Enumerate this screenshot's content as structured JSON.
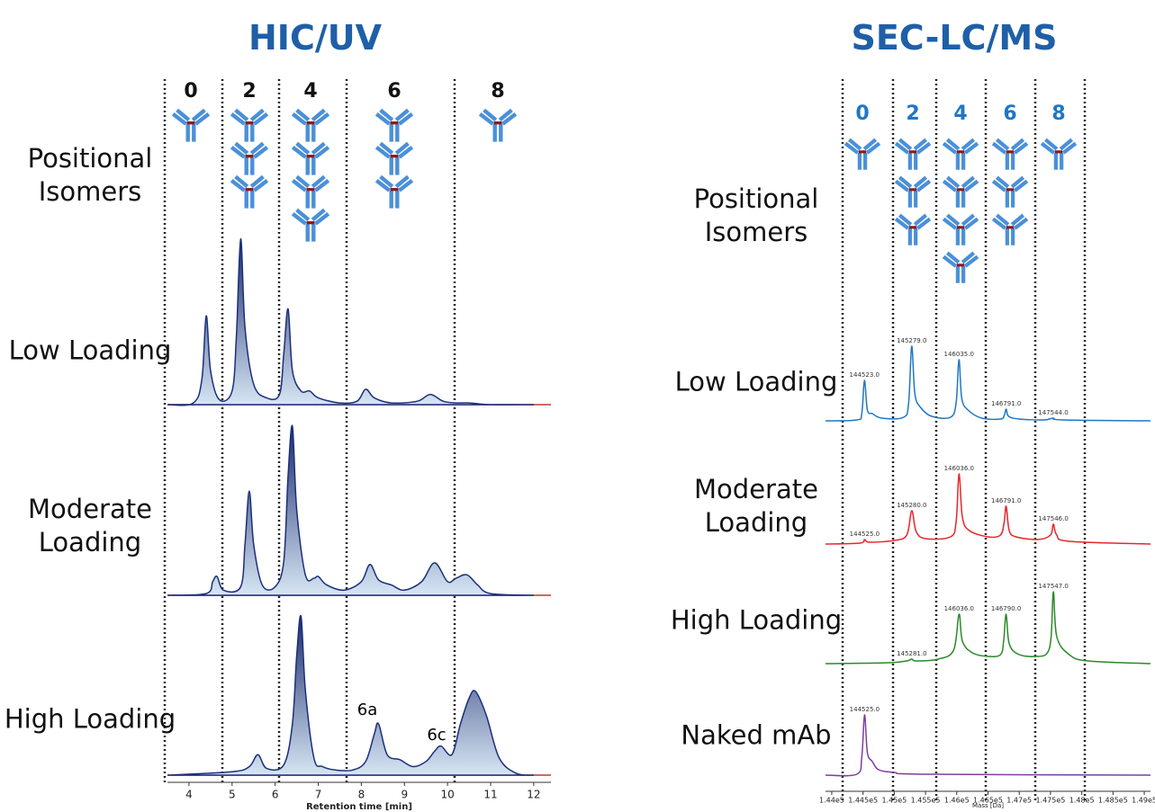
{
  "chart_data": [
    {
      "type": "area",
      "title": "HIC/UV",
      "columns": [
        0,
        2,
        4,
        6,
        8
      ],
      "row_label": "Positional Isomers",
      "xlabel": "Retention time [min]",
      "xlim": [
        3.5,
        12.4
      ],
      "xticks": [
        4,
        5,
        6,
        7,
        8,
        9,
        10,
        11,
        12
      ],
      "ylim": [
        0,
        100
      ],
      "color": "#1c2f7a",
      "annotations": [
        "6a",
        "6c"
      ],
      "series": [
        {
          "name": "Low Loading",
          "x": [
            3.5,
            4.1,
            4.3,
            4.4,
            4.5,
            4.7,
            5.0,
            5.1,
            5.2,
            5.3,
            5.5,
            5.8,
            6.1,
            6.2,
            6.3,
            6.4,
            6.6,
            6.8,
            7.0,
            7.5,
            7.9,
            8.1,
            8.3,
            8.7,
            9.3,
            9.6,
            9.9,
            10.2,
            10.5,
            11.0,
            12.0
          ],
          "values": [
            0,
            1,
            15,
            52,
            20,
            3,
            8,
            40,
            97,
            45,
            12,
            4,
            6,
            30,
            56,
            20,
            8,
            8,
            4,
            1,
            2,
            9,
            4,
            1,
            2,
            6,
            2,
            1,
            1,
            0,
            0
          ]
        },
        {
          "name": "Moderate Loading",
          "x": [
            3.5,
            4.4,
            4.55,
            4.65,
            4.8,
            5.2,
            5.3,
            5.4,
            5.5,
            5.7,
            6.0,
            6.2,
            6.3,
            6.4,
            6.5,
            6.7,
            6.9,
            7.0,
            7.2,
            7.6,
            8.0,
            8.2,
            8.4,
            8.7,
            9.0,
            9.4,
            9.7,
            10.0,
            10.2,
            10.45,
            10.7,
            11.0,
            12.0
          ],
          "values": [
            0,
            1,
            8,
            11,
            3,
            5,
            30,
            61,
            30,
            6,
            5,
            20,
            70,
            99,
            50,
            12,
            10,
            11,
            6,
            3,
            8,
            18,
            9,
            6,
            3,
            8,
            19,
            8,
            10,
            12,
            6,
            1,
            0
          ]
        },
        {
          "name": "High Loading",
          "x": [
            3.5,
            5.0,
            5.4,
            5.6,
            5.8,
            6.2,
            6.4,
            6.5,
            6.6,
            6.7,
            6.9,
            7.1,
            7.4,
            7.8,
            8.1,
            8.3,
            8.4,
            8.6,
            8.9,
            9.2,
            9.5,
            9.7,
            9.85,
            10.1,
            10.3,
            10.5,
            10.65,
            10.9,
            11.2,
            11.6,
            12.0
          ],
          "values": [
            0,
            2,
            5,
            12,
            4,
            6,
            30,
            70,
            93,
            50,
            10,
            5,
            3,
            3,
            8,
            24,
            30,
            12,
            9,
            5,
            8,
            14,
            17,
            12,
            30,
            45,
            49,
            35,
            10,
            1,
            0
          ]
        }
      ]
    },
    {
      "type": "line",
      "title": "SEC-LC/MS",
      "columns": [
        0,
        2,
        4,
        6,
        8
      ],
      "row_label": "Positional Isomers",
      "xlabel": "Mass [Da]",
      "xlim": [
        143900,
        149100
      ],
      "ylim": [
        0,
        100
      ],
      "xticks": [
        {
          "value": 144000,
          "label": "1.44e5"
        },
        {
          "value": 144500,
          "label": "1.445e5"
        },
        {
          "value": 145000,
          "label": "1.45e5"
        },
        {
          "value": 145500,
          "label": "1.455e5"
        },
        {
          "value": 146000,
          "label": "1.46e5"
        },
        {
          "value": 146500,
          "label": "1.465e5"
        },
        {
          "value": 147000,
          "label": "1.47e5"
        },
        {
          "value": 147500,
          "label": "1.475e5"
        },
        {
          "value": 148000,
          "label": "1.48e5"
        },
        {
          "value": 148500,
          "label": "1.485e5"
        },
        {
          "value": 149000,
          "label": "1.49e5"
        }
      ],
      "series": [
        {
          "name": "Low Loading",
          "color": "#1f77c4",
          "x": [
            143900,
            144400,
            144480,
            144523,
            144570,
            144650,
            144800,
            145150,
            145230,
            145279,
            145330,
            145420,
            145600,
            145900,
            145990,
            146035,
            146080,
            146180,
            146400,
            146700,
            146760,
            146791,
            146830,
            147000,
            147400,
            147544,
            147700,
            149100
          ],
          "values": [
            0,
            1,
            8,
            45,
            12,
            8,
            3,
            4,
            20,
            83,
            30,
            15,
            5,
            4,
            20,
            68,
            25,
            12,
            3,
            2,
            6,
            13,
            5,
            2,
            1,
            3,
            1,
            0
          ],
          "peaks": [
            144523,
            145279,
            146035,
            146791,
            147544
          ],
          "peak_labels": [
            "144523.0",
            "145279.0",
            "146035.0",
            "146791.0",
            "147544.0"
          ]
        },
        {
          "name": "Moderate Loading",
          "color": "#e8262a",
          "x": [
            143900,
            144450,
            144525,
            144600,
            145000,
            145200,
            145280,
            145350,
            145500,
            145900,
            145990,
            146036,
            146090,
            146200,
            146500,
            146700,
            146760,
            146791,
            146840,
            146950,
            147300,
            147500,
            147546,
            147600,
            147800,
            149100
          ],
          "values": [
            0,
            1,
            5,
            2,
            4,
            10,
            37,
            14,
            6,
            8,
            25,
            78,
            30,
            15,
            8,
            10,
            25,
            42,
            15,
            8,
            5,
            10,
            22,
            10,
            3,
            0
          ],
          "peaks": [
            144525,
            145280,
            146036,
            146791,
            147546
          ],
          "peak_labels": [
            "144525.0",
            "145280.0",
            "146036.0",
            "146791.0",
            "147546.0"
          ]
        },
        {
          "name": "High Loading",
          "color": "#2a8a2a",
          "x": [
            143900,
            144900,
            145200,
            145281,
            145350,
            145700,
            145950,
            146036,
            146090,
            146250,
            146500,
            146700,
            146750,
            146790,
            146840,
            147000,
            147300,
            147450,
            147510,
            147547,
            147600,
            147800,
            148100,
            149100
          ],
          "values": [
            0,
            1,
            3,
            5,
            3,
            5,
            15,
            55,
            25,
            12,
            8,
            10,
            25,
            55,
            22,
            10,
            8,
            12,
            30,
            80,
            30,
            10,
            3,
            0
          ],
          "peaks": [
            145281,
            146036,
            146790,
            147547
          ],
          "peak_labels": [
            "145281.0",
            "146036.0",
            "146790.0",
            "147547.0"
          ]
        },
        {
          "name": "Naked mAb",
          "color": "#7b3fa0",
          "x": [
            143900,
            144400,
            144480,
            144525,
            144570,
            144650,
            144750,
            145000,
            145500,
            149100
          ],
          "values": [
            0,
            1,
            20,
            67,
            25,
            15,
            6,
            3,
            1,
            0
          ],
          "peaks": [
            144525
          ],
          "peak_labels": [
            "144525.0"
          ]
        }
      ]
    }
  ]
}
